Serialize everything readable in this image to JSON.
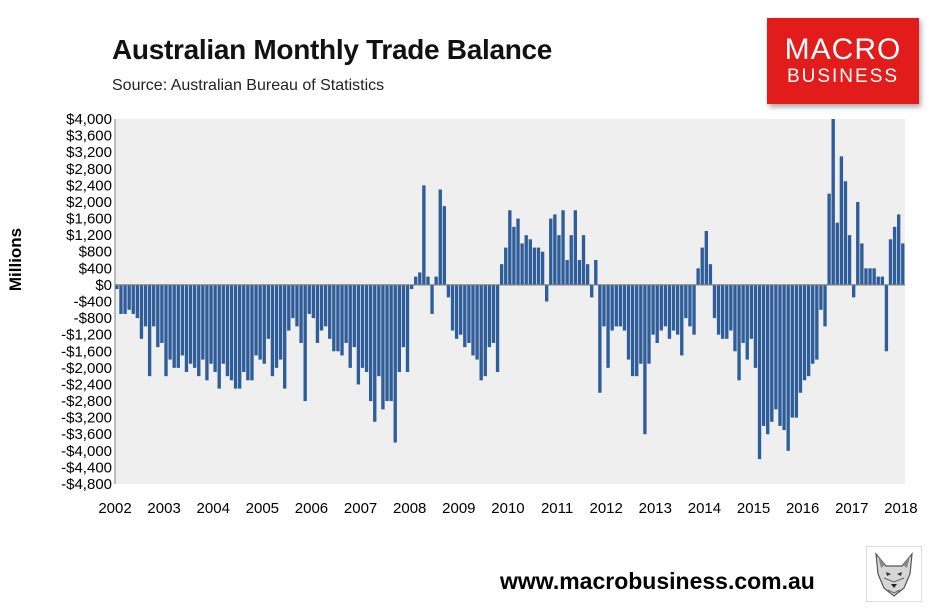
{
  "header": {
    "title": "Australian Monthly Trade Balance",
    "subtitle": "Source: Australian Bureau of Statistics"
  },
  "logo": {
    "line1": "MACRO",
    "line2": "BUSINESS",
    "background": "#e21b1b"
  },
  "footer": {
    "website": "www.macrobusiness.com.au"
  },
  "colors": {
    "bar": "#2f5d9a",
    "plot_background": "#efefef"
  },
  "chart_data": {
    "type": "bar",
    "title": "Australian Monthly Trade Balance",
    "ylabel": "Millions",
    "xlabel": "",
    "ylim": [
      -4800,
      4000
    ],
    "yticks": [
      -4800,
      -4400,
      -4000,
      -3600,
      -3200,
      -2800,
      -2400,
      -2000,
      -1600,
      -1200,
      -800,
      -400,
      0,
      400,
      800,
      1200,
      1600,
      2000,
      2400,
      2800,
      3200,
      3600,
      4000
    ],
    "ytick_labels": [
      "-$4,800",
      "-$4,400",
      "-$4,000",
      "-$3,600",
      "-$3,200",
      "-$2,800",
      "-$2,400",
      "-$2,000",
      "-$1,600",
      "-$1,200",
      "-$800",
      "-$400",
      "$0",
      "$400",
      "$800",
      "$1,200",
      "$1,600",
      "$2,000",
      "$2,400",
      "$2,800",
      "$3,200",
      "$3,600",
      "$4,000"
    ],
    "xtick_labels": [
      "2002",
      "2003",
      "2004",
      "2005",
      "2006",
      "2007",
      "2008",
      "2009",
      "2010",
      "2011",
      "2012",
      "2013",
      "2014",
      "2015",
      "2016",
      "2017",
      "2018"
    ],
    "start_year": 2002,
    "grid": false,
    "legend": "none",
    "series": [
      {
        "values": [
          -100,
          -700,
          -700,
          -600,
          -700,
          -800,
          -1300,
          -1000,
          -2200,
          -1000,
          -1500,
          -1400,
          -2200,
          -1800,
          -2000,
          -2000,
          -1700,
          -2100,
          -1900,
          -2000,
          -2200,
          -1800,
          -2300,
          -1900,
          -2100,
          -2500,
          -1900,
          -2200,
          -2300,
          -2500,
          -2500,
          -2100,
          -2300,
          -2300,
          -1700,
          -1800,
          -1900,
          -1300,
          -2200,
          -2000,
          -1800,
          -2500,
          -1100,
          -800,
          -1000,
          -1400,
          -2800,
          -700,
          -800,
          -1400,
          -1100,
          -1000,
          -1300,
          -1600,
          -1600,
          -1700,
          -1400,
          -2000,
          -1500,
          -2400,
          -2000,
          -2100,
          -2800,
          -3300,
          -2200,
          -3000,
          -2800,
          -2800,
          -3800,
          -2100,
          -1500,
          -2100,
          -100,
          200,
          300,
          2400,
          200,
          -700,
          200,
          2300,
          1900,
          -300,
          -1100,
          -1300,
          -1200,
          -1500,
          -1400,
          -1700,
          -1800,
          -2300,
          -2200,
          -1500,
          -1400,
          -2100,
          500,
          900,
          1800,
          1400,
          1600,
          1000,
          1200,
          1100,
          900,
          900,
          800,
          -400,
          1600,
          1700,
          1200,
          1800,
          600,
          1200,
          1800,
          600,
          1200,
          500,
          -300,
          600,
          -2600,
          -1000,
          -2000,
          -1100,
          -1000,
          -1000,
          -1100,
          -1800,
          -2200,
          -2200,
          -1900,
          -3600,
          -1900,
          -1200,
          -1400,
          -1100,
          -1000,
          -1300,
          -1100,
          -1200,
          -1700,
          -800,
          -1000,
          -1200,
          400,
          900,
          1300,
          500,
          -800,
          -1200,
          -1300,
          -1300,
          -1100,
          -1600,
          -2300,
          -1400,
          -1800,
          -1300,
          -2000,
          -4200,
          -3400,
          -3600,
          -3300,
          -3000,
          -3400,
          -3500,
          -4000,
          -3200,
          -3200,
          -2600,
          -2300,
          -2200,
          -1900,
          -1800,
          -600,
          -1000,
          2200,
          4000,
          1500,
          3100,
          2500,
          1200,
          -300,
          2000,
          1000,
          400,
          400,
          400,
          200,
          200,
          -1600,
          1100,
          1400,
          1700,
          1000
        ]
      }
    ]
  }
}
